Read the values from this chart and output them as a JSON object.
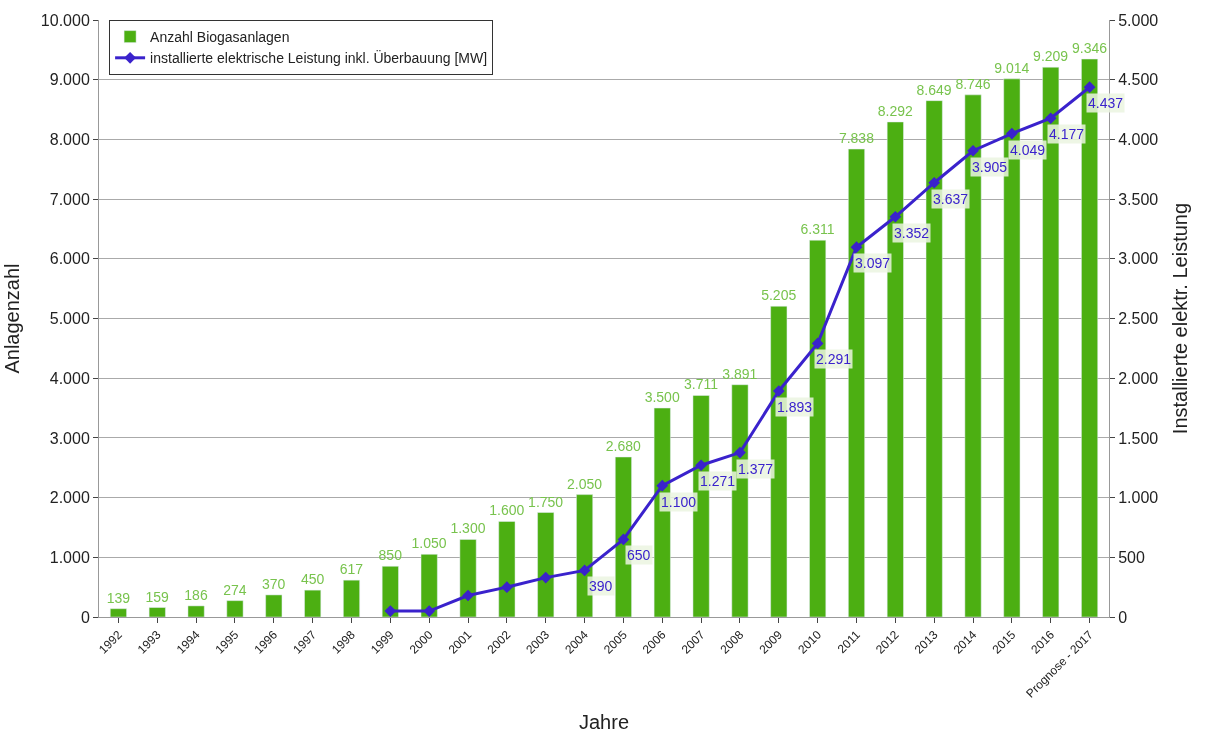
{
  "chart_data": {
    "type": "bar",
    "xlabel": "Jahre",
    "ylabel": "Anlagenzahl",
    "y2label": "Installierte elektr. Leistung",
    "categories": [
      "1992",
      "1993",
      "1994",
      "1995",
      "1996",
      "1997",
      "1998",
      "1999",
      "2000",
      "2001",
      "2002",
      "2003",
      "2004",
      "2005",
      "2006",
      "2007",
      "2008",
      "2009",
      "2010",
      "2011",
      "2012",
      "2013",
      "2014",
      "2015",
      "2016",
      "Prognose - 2017"
    ],
    "series": [
      {
        "name": "Anzahl Biogasanlagen",
        "color": "#4caf12",
        "values": [
          139,
          159,
          186,
          274,
          370,
          450,
          617,
          850,
          1050,
          1300,
          1600,
          1750,
          2050,
          2680,
          3500,
          3711,
          3891,
          5205,
          6311,
          7838,
          8292,
          8649,
          8746,
          9014,
          9209,
          9346
        ],
        "value_labels": [
          "139",
          "159",
          "186",
          "274",
          "370",
          "450",
          "617",
          "850",
          "1.050",
          "1.300",
          "1.600",
          "1.750",
          "2.050",
          "2.680",
          "3.500",
          "3.711",
          "3.891",
          "5.205",
          "6.311",
          "7.838",
          "8.292",
          "8.649",
          "8.746",
          "9.014",
          "9.209",
          "9.346"
        ]
      },
      {
        "name": "installierte elektrische Leistung inkl. Überbauung [MW]",
        "type": "line",
        "axis": "y2",
        "color": "#3a22cc",
        "marker": "diamond",
        "values": [
          null,
          null,
          null,
          null,
          null,
          null,
          null,
          50,
          50,
          180,
          250,
          330,
          390,
          650,
          1100,
          1271,
          1377,
          1893,
          2291,
          3097,
          3352,
          3637,
          3905,
          4049,
          4177,
          4437
        ],
        "value_labels": [
          null,
          null,
          null,
          null,
          null,
          null,
          null,
          null,
          null,
          null,
          null,
          null,
          "390",
          "650",
          "1.100",
          "1.271",
          "1.377",
          "1.893",
          "2.291",
          "3.097",
          "3.352",
          "3.637",
          "3.905",
          "4.049",
          "4.177",
          "4.437"
        ]
      }
    ],
    "ylim": [
      0,
      10000
    ],
    "yticks": [
      {
        "value": 0,
        "label": "0"
      },
      {
        "value": 1000,
        "label": "1.000"
      },
      {
        "value": 2000,
        "label": "2.000"
      },
      {
        "value": 3000,
        "label": "3.000"
      },
      {
        "value": 4000,
        "label": "4.000"
      },
      {
        "value": 5000,
        "label": "5.000"
      },
      {
        "value": 6000,
        "label": "6.000"
      },
      {
        "value": 7000,
        "label": "7.000"
      },
      {
        "value": 8000,
        "label": "8.000"
      },
      {
        "value": 9000,
        "label": "9.000"
      },
      {
        "value": 10000,
        "label": "10.000"
      }
    ],
    "y2lim": [
      0,
      5000
    ],
    "y2ticks": [
      {
        "value": 0,
        "label": "0"
      },
      {
        "value": 500,
        "label": "500"
      },
      {
        "value": 1000,
        "label": "1.000"
      },
      {
        "value": 1500,
        "label": "1.500"
      },
      {
        "value": 2000,
        "label": "2.000"
      },
      {
        "value": 2500,
        "label": "2.500"
      },
      {
        "value": 3000,
        "label": "3.000"
      },
      {
        "value": 3500,
        "label": "3.500"
      },
      {
        "value": 4000,
        "label": "4.000"
      },
      {
        "value": 4500,
        "label": "4.500"
      },
      {
        "value": 5000,
        "label": "5.000"
      }
    ],
    "grid": "y",
    "legend": "top left"
  }
}
